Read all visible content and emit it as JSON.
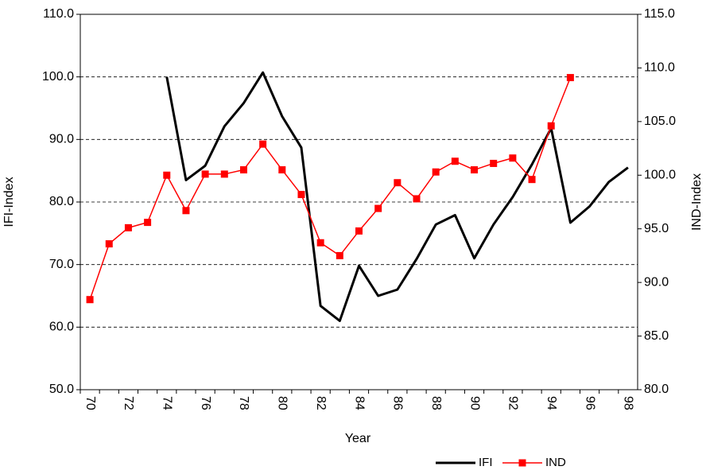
{
  "chart_data": {
    "type": "line",
    "x_label": "Year",
    "y_label": "IFI-Index",
    "y2_label": "IND-Index",
    "categories": [
      "70",
      null,
      "72",
      null,
      "74",
      null,
      "76",
      null,
      "78",
      null,
      "80",
      null,
      "82",
      null,
      "84",
      null,
      "86",
      null,
      "88",
      null,
      "90",
      null,
      "92",
      null,
      "94",
      null,
      "96",
      null,
      "98"
    ],
    "series": [
      {
        "name": "IFI",
        "color": "#000000",
        "axis": "y",
        "values": [
          null,
          null,
          null,
          null,
          100.0,
          83.5,
          85.8,
          92.1,
          95.8,
          100.7,
          93.7,
          88.7,
          63.4,
          61.0,
          69.8,
          65.0,
          66.0,
          70.9,
          76.4,
          77.9,
          71.0,
          76.4,
          80.8,
          86.0,
          91.8,
          76.7,
          79.3,
          83.2,
          85.5
        ]
      },
      {
        "name": "IND",
        "color": "#ff0000",
        "axis": "y2",
        "marker": "square",
        "values": [
          88.4,
          93.6,
          95.1,
          95.6,
          100.0,
          96.7,
          100.1,
          100.1,
          100.5,
          102.9,
          100.5,
          98.2,
          93.7,
          92.5,
          94.8,
          96.9,
          99.3,
          97.8,
          100.3,
          101.3,
          100.5,
          101.1,
          101.6,
          99.6,
          104.6,
          109.1,
          null,
          null,
          null
        ]
      }
    ],
    "ylim": [
      50,
      110
    ],
    "yticks": [
      {
        "value": 50,
        "label": "50.0"
      },
      {
        "value": 60,
        "label": "60.0"
      },
      {
        "value": 70,
        "label": "70.0"
      },
      {
        "value": 80,
        "label": "80.0"
      },
      {
        "value": 90,
        "label": "90.0"
      },
      {
        "value": 100,
        "label": "100.0"
      },
      {
        "value": 110,
        "label": "110.0"
      }
    ],
    "y2lim": [
      80,
      115
    ],
    "y2ticks": [
      {
        "value": 80,
        "label": "80.0"
      },
      {
        "value": 85,
        "label": "85.0"
      },
      {
        "value": 90,
        "label": "90.0"
      },
      {
        "value": 95,
        "label": "95.0"
      },
      {
        "value": 100,
        "label": "100.0"
      },
      {
        "value": 105,
        "label": "105.0"
      },
      {
        "value": 110,
        "label": "110.0"
      },
      {
        "value": 115,
        "label": "115.0"
      }
    ],
    "grid": true,
    "legend": "bottom-right"
  }
}
